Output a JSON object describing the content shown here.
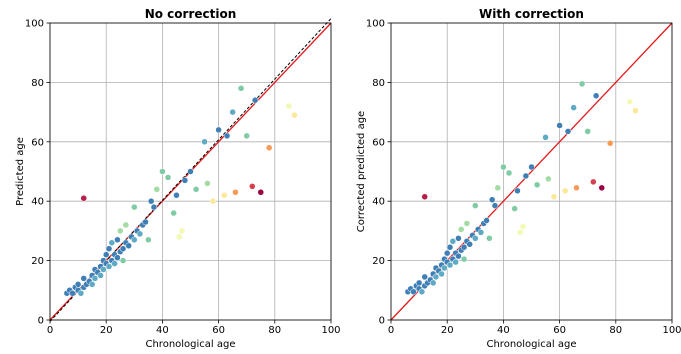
{
  "chart_data": [
    {
      "type": "scatter",
      "title": "No correction",
      "xlabel": "Chronological age",
      "ylabel": "Predicted age",
      "xlim": [
        0,
        100
      ],
      "ylim": [
        0,
        100
      ],
      "xticks": [
        0,
        20,
        40,
        60,
        80,
        100
      ],
      "yticks": [
        0,
        20,
        40,
        60,
        80,
        100
      ],
      "grid": true,
      "x": [
        6,
        7,
        8,
        9,
        10,
        10,
        11,
        12,
        12,
        13,
        14,
        15,
        15,
        16,
        16,
        17,
        18,
        18,
        19,
        19,
        20,
        20,
        21,
        21,
        22,
        22,
        23,
        23,
        24,
        24,
        25,
        25,
        26,
        26,
        27,
        27,
        28,
        29,
        30,
        30,
        31,
        32,
        33,
        34,
        35,
        36,
        37,
        38,
        40,
        42,
        44,
        45,
        46,
        47,
        48,
        50,
        52,
        55,
        56,
        58,
        60,
        62,
        63,
        65,
        66,
        68,
        70,
        72,
        73,
        75,
        78,
        85,
        87,
        12
      ],
      "y": [
        9,
        10,
        9,
        11,
        10,
        12,
        9,
        11,
        14,
        12,
        13,
        15,
        12,
        17,
        14,
        16,
        18,
        15,
        20,
        17,
        19,
        22,
        18,
        24,
        20,
        26,
        22,
        19,
        21,
        27,
        23,
        30,
        24,
        20,
        26,
        32,
        25,
        28,
        27,
        38,
        30,
        29,
        32,
        33,
        27,
        40,
        38,
        44,
        50,
        48,
        36,
        42,
        28,
        30,
        47,
        50,
        44,
        60,
        46,
        40,
        64,
        42,
        62,
        70,
        43,
        78,
        62,
        45,
        74,
        43,
        58,
        72,
        69,
        41
      ],
      "colors": [
        "#3f7fb6",
        "#3f7fb6",
        "#3f7fb6",
        "#3f7fb6",
        "#3f7fb6",
        "#3f7fb6",
        "#5ea9c4",
        "#3f7fb6",
        "#3f7fb6",
        "#3f7fb6",
        "#3f7fb6",
        "#3f7fb6",
        "#5ea9c4",
        "#3f7fb6",
        "#5ea9c4",
        "#3f7fb6",
        "#3f7fb6",
        "#5ea9c4",
        "#3f7fb6",
        "#5ea9c4",
        "#3f7fb6",
        "#3f7fb6",
        "#5ea9c4",
        "#3f7fb6",
        "#3f7fb6",
        "#5ea9c4",
        "#3f7fb6",
        "#5ea9c4",
        "#3f7fb6",
        "#3f7fb6",
        "#3f7fb6",
        "#a4dba4",
        "#3f7fb6",
        "#7fcba4",
        "#3f7fb6",
        "#a4dba4",
        "#3f7fb6",
        "#3f7fb6",
        "#5ea9c4",
        "#7fcba4",
        "#3f7fb6",
        "#5ea9c4",
        "#3f7fb6",
        "#3f7fb6",
        "#7fcba4",
        "#3f7fb6",
        "#3f7fb6",
        "#a4dba4",
        "#7fcba4",
        "#7fcba4",
        "#7fcba4",
        "#3f7fb6",
        "#f3f9b2",
        "#f3f9b2",
        "#3f7fb6",
        "#3f7fb6",
        "#7fcba4",
        "#5ea9c4",
        "#a4dba4",
        "#fde89a",
        "#3f7fb6",
        "#fde89a",
        "#3f7fb6",
        "#5ea9c4",
        "#f99a55",
        "#7fcba4",
        "#7fcba4",
        "#d6404e",
        "#3f7fb6",
        "#9e0142",
        "#f99a55",
        "#f3f9b2",
        "#fde89a",
        "#b81f48"
      ],
      "lines": [
        {
          "x": [
            0,
            100
          ],
          "y": [
            0,
            100
          ],
          "color": "#e41a1c",
          "dash": false
        },
        {
          "x": [
            0,
            100
          ],
          "y": [
            -0.5,
            101.5
          ],
          "color": "#000000",
          "dash": true
        }
      ]
    },
    {
      "type": "scatter",
      "title": "With correction",
      "xlabel": "Chronological age",
      "ylabel": "Corrected predicted age",
      "xlim": [
        0,
        100
      ],
      "ylim": [
        0,
        100
      ],
      "xticks": [
        0,
        20,
        40,
        60,
        80,
        100
      ],
      "yticks": [
        0,
        20,
        40,
        60,
        80,
        100
      ],
      "grid": true,
      "x": [
        6,
        7,
        8,
        9,
        10,
        10,
        11,
        12,
        12,
        13,
        14,
        15,
        15,
        16,
        16,
        17,
        18,
        18,
        19,
        19,
        20,
        20,
        21,
        21,
        22,
        22,
        23,
        23,
        24,
        24,
        25,
        25,
        26,
        26,
        27,
        27,
        28,
        29,
        30,
        30,
        31,
        32,
        33,
        34,
        35,
        36,
        37,
        38,
        40,
        42,
        44,
        45,
        46,
        47,
        48,
        50,
        52,
        55,
        56,
        58,
        60,
        62,
        63,
        65,
        66,
        68,
        70,
        72,
        73,
        75,
        78,
        85,
        87,
        12
      ],
      "y": [
        9.5,
        10.5,
        9.5,
        11.5,
        10.5,
        12.5,
        9.5,
        11.5,
        14.5,
        12.5,
        13.5,
        15.5,
        12.5,
        17.5,
        14.5,
        16.5,
        18.5,
        15.5,
        20.5,
        17.5,
        19.5,
        22.5,
        18.5,
        24.5,
        20.5,
        26.5,
        22.5,
        19.5,
        21.5,
        27.5,
        23.5,
        30.5,
        24.5,
        20.5,
        26.5,
        32.5,
        25.5,
        28.5,
        27.5,
        38.5,
        30.5,
        29.5,
        32.5,
        33.5,
        27.5,
        40.5,
        38.5,
        44.5,
        51.5,
        49.5,
        37.5,
        43.5,
        29.5,
        31.5,
        48.5,
        51.5,
        45.5,
        61.5,
        47.5,
        41.5,
        65.5,
        43.5,
        63.5,
        71.5,
        44.5,
        79.5,
        63.5,
        46.5,
        75.5,
        44.5,
        59.5,
        73.5,
        70.5,
        41.5
      ],
      "colors": [
        "#3f7fb6",
        "#3f7fb6",
        "#3f7fb6",
        "#3f7fb6",
        "#3f7fb6",
        "#3f7fb6",
        "#5ea9c4",
        "#3f7fb6",
        "#3f7fb6",
        "#3f7fb6",
        "#3f7fb6",
        "#3f7fb6",
        "#5ea9c4",
        "#3f7fb6",
        "#5ea9c4",
        "#3f7fb6",
        "#3f7fb6",
        "#5ea9c4",
        "#3f7fb6",
        "#5ea9c4",
        "#3f7fb6",
        "#3f7fb6",
        "#5ea9c4",
        "#3f7fb6",
        "#3f7fb6",
        "#5ea9c4",
        "#3f7fb6",
        "#5ea9c4",
        "#3f7fb6",
        "#3f7fb6",
        "#3f7fb6",
        "#a4dba4",
        "#3f7fb6",
        "#7fcba4",
        "#3f7fb6",
        "#a4dba4",
        "#3f7fb6",
        "#3f7fb6",
        "#5ea9c4",
        "#7fcba4",
        "#3f7fb6",
        "#5ea9c4",
        "#3f7fb6",
        "#3f7fb6",
        "#7fcba4",
        "#3f7fb6",
        "#3f7fb6",
        "#a4dba4",
        "#7fcba4",
        "#7fcba4",
        "#7fcba4",
        "#3f7fb6",
        "#f3f9b2",
        "#f3f9b2",
        "#3f7fb6",
        "#3f7fb6",
        "#7fcba4",
        "#5ea9c4",
        "#a4dba4",
        "#fde89a",
        "#3f7fb6",
        "#fde89a",
        "#3f7fb6",
        "#5ea9c4",
        "#f99a55",
        "#7fcba4",
        "#7fcba4",
        "#d6404e",
        "#3f7fb6",
        "#9e0142",
        "#f99a55",
        "#f3f9b2",
        "#fde89a",
        "#b81f48"
      ],
      "lines": [
        {
          "x": [
            0,
            100
          ],
          "y": [
            0,
            100
          ],
          "color": "#e41a1c",
          "dash": false
        }
      ]
    }
  ]
}
